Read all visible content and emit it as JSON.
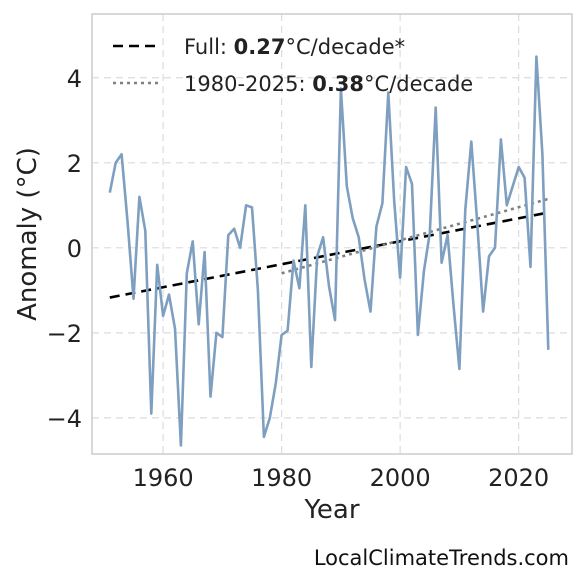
{
  "chart_data": {
    "type": "line",
    "xlabel": "Year",
    "ylabel": "Anomaly (°C)",
    "xlim": [
      1948,
      2029
    ],
    "ylim": [
      -4.85,
      5.5
    ],
    "xticks": [
      1960,
      1980,
      2000,
      2020
    ],
    "yticks": [
      -4,
      -2,
      0,
      2,
      4
    ],
    "ytick_labels": [
      "−4",
      "−2",
      "0",
      "2",
      "4"
    ],
    "grid": true,
    "legend_placement": "top-left",
    "colors": {
      "series": "#7f9fc0",
      "full_trend": "#000000",
      "recent_trend": "#808080",
      "grid": "#dcdcdc"
    },
    "series": [
      {
        "x": [
          1951,
          1952,
          1953,
          1954,
          1955,
          1956,
          1957,
          1958,
          1959,
          1960,
          1961,
          1962,
          1963,
          1964,
          1965,
          1966,
          1967,
          1968,
          1969,
          1970,
          1971,
          1972,
          1973,
          1974,
          1975,
          1976,
          1977,
          1978,
          1979,
          1980,
          1981,
          1982,
          1983,
          1984,
          1985,
          1986,
          1987,
          1988,
          1989,
          1990,
          1991,
          1992,
          1993,
          1994,
          1995,
          1996,
          1997,
          1998,
          1999,
          2000,
          2001,
          2002,
          2003,
          2004,
          2005,
          2006,
          2007,
          2008,
          2009,
          2010,
          2011,
          2012,
          2013,
          2014,
          2015,
          2016,
          2017,
          2018,
          2019,
          2020,
          2021,
          2022,
          2023,
          2024,
          2025
        ],
        "values": [
          1.3,
          2.0,
          2.2,
          0.6,
          -1.2,
          1.2,
          0.4,
          -3.9,
          -0.4,
          -1.6,
          -1.1,
          -1.9,
          -4.65,
          -0.6,
          0.15,
          -1.8,
          -0.1,
          -3.5,
          -2.0,
          -2.1,
          0.3,
          0.45,
          0.0,
          1.0,
          0.95,
          -1.0,
          -4.45,
          -4.0,
          -3.2,
          -2.05,
          -1.95,
          -0.3,
          -0.95,
          1.0,
          -2.8,
          -0.2,
          0.25,
          -0.9,
          -1.7,
          3.75,
          1.45,
          0.7,
          0.25,
          -0.75,
          -1.5,
          0.5,
          1.05,
          3.65,
          1.1,
          -0.7,
          1.9,
          1.5,
          -2.05,
          -0.55,
          0.35,
          3.3,
          -0.35,
          0.3,
          -1.35,
          -2.85,
          0.9,
          2.5,
          0.6,
          -1.5,
          -0.2,
          0.0,
          2.55,
          1.0,
          1.45,
          1.9,
          1.65,
          -0.45,
          4.5,
          2.2,
          -2.4
        ]
      }
    ],
    "trends": [
      {
        "label_prefix": "Full: ",
        "value": "0.27",
        "unit": "°C/decade*",
        "style": "dashed",
        "x0": 1951,
        "y0": -1.17,
        "x1": 2025,
        "y1": 0.83
      },
      {
        "label_prefix": "1980-2025: ",
        "value": "0.38",
        "unit": "°C/decade",
        "style": "dotted",
        "x0": 1980,
        "y0": -0.6,
        "x1": 2025,
        "y1": 1.15
      }
    ]
  },
  "credit": "LocalClimateTrends.com"
}
